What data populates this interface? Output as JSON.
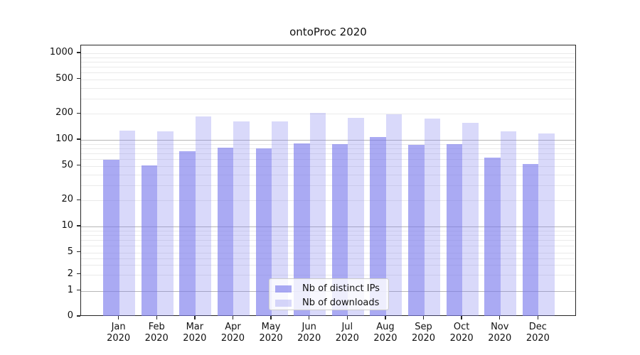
{
  "chart_data": {
    "type": "bar",
    "title": "ontoProc 2020",
    "categories": [
      "Jan",
      "Feb",
      "Mar",
      "Apr",
      "May",
      "Jun",
      "Jul",
      "Aug",
      "Sep",
      "Oct",
      "Nov",
      "Dec"
    ],
    "category_year_label": "2020",
    "series": [
      {
        "name": "Nb of distinct IPs",
        "values": [
          59,
          51,
          74,
          81,
          79,
          91,
          90,
          107,
          88,
          90,
          62,
          53
        ]
      },
      {
        "name": "Nb of downloads",
        "values": [
          128,
          125,
          186,
          163,
          163,
          203,
          180,
          197,
          176,
          156,
          125,
          118
        ]
      }
    ],
    "yticks": [
      0,
      1,
      2,
      5,
      10,
      20,
      50,
      100,
      200,
      500,
      1000
    ],
    "xlabel": "",
    "ylabel": "",
    "yscale": "symlog",
    "ylim": [
      0,
      1400
    ],
    "grid": "on",
    "legend_position": "lower center"
  },
  "colors": {
    "bar_base_rgb": "121,121,236",
    "ips_alpha": "0.63",
    "downloads_alpha": "0.285",
    "major_grid": "#b6b6b6",
    "minor_grid": "#eaeaea",
    "spine": "#262626",
    "text": "#111111",
    "legend_border": "#cccccc"
  }
}
